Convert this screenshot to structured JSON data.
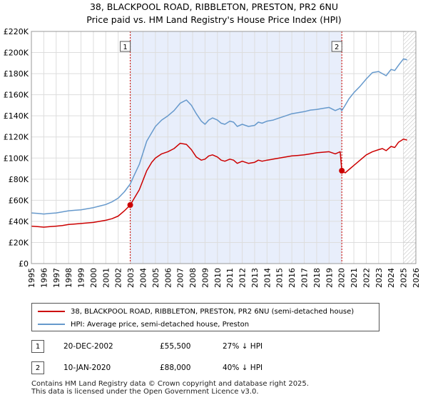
{
  "title_line1": "38, BLACKPOOL ROAD, RIBBLETON, PRESTON, PR2 6NU",
  "title_line2": "Price paid vs. HM Land Registry's House Price Index (HPI)",
  "chart_data": {
    "type": "line",
    "title": "38, BLACKPOOL ROAD, RIBBLETON, PRESTON, PR2 6NU — Price paid vs. HM Land Registry's House Price Index (HPI)",
    "xlim": [
      1995,
      2026
    ],
    "ylim": [
      0,
      220000
    ],
    "y_ticks": [
      {
        "value": 0,
        "label": "£0"
      },
      {
        "value": 20000,
        "label": "£20K"
      },
      {
        "value": 40000,
        "label": "£40K"
      },
      {
        "value": 60000,
        "label": "£60K"
      },
      {
        "value": 80000,
        "label": "£80K"
      },
      {
        "value": 100000,
        "label": "£100K"
      },
      {
        "value": 120000,
        "label": "£120K"
      },
      {
        "value": 140000,
        "label": "£140K"
      },
      {
        "value": 160000,
        "label": "£160K"
      },
      {
        "value": 180000,
        "label": "£180K"
      },
      {
        "value": 200000,
        "label": "£200K"
      },
      {
        "value": 220000,
        "label": "£220K"
      }
    ],
    "x_ticks": [
      "1995",
      "1996",
      "1997",
      "1998",
      "1999",
      "2000",
      "2001",
      "2002",
      "2003",
      "2004",
      "2005",
      "2006",
      "2007",
      "2008",
      "2009",
      "2010",
      "2011",
      "2012",
      "2013",
      "2014",
      "2015",
      "2016",
      "2017",
      "2018",
      "2019",
      "2020",
      "2021",
      "2022",
      "2023",
      "2024",
      "2025",
      "2026"
    ],
    "shaded_span": [
      2002.97,
      2020.03
    ],
    "hatched_from": 2025.0,
    "colors": {
      "property": "#cc0000",
      "hpi": "#6699cc",
      "shade": "#e8eefb",
      "grid": "#dddddd"
    },
    "series": [
      {
        "name": "38, BLACKPOOL ROAD, RIBBLETON, PRESTON, PR2 6NU (semi-detached house)",
        "color": "#cc0000",
        "x": [
          1995,
          1995.5,
          1996,
          1996.5,
          1997,
          1997.5,
          1998,
          1998.5,
          1999,
          1999.5,
          2000,
          2000.5,
          2001,
          2001.5,
          2002,
          2002.5,
          2002.97,
          2003.3,
          2003.7,
          2004,
          2004.3,
          2004.7,
          2005,
          2005.5,
          2006,
          2006.5,
          2007,
          2007.5,
          2007.9,
          2008.3,
          2008.7,
          2009,
          2009.3,
          2009.6,
          2010,
          2010.3,
          2010.6,
          2011,
          2011.3,
          2011.6,
          2012,
          2012.5,
          2013,
          2013.3,
          2013.6,
          2014,
          2014.5,
          2015,
          2015.5,
          2016,
          2016.5,
          2017,
          2017.5,
          2018,
          2018.5,
          2019,
          2019.5,
          2019.9,
          2020.03,
          2020.3,
          2020.6,
          2021,
          2021.5,
          2022,
          2022.5,
          2023,
          2023.3,
          2023.6,
          2024,
          2024.3,
          2024.6,
          2025,
          2025.3
        ],
        "y": [
          35500,
          35000,
          34500,
          35000,
          35500,
          36000,
          37000,
          37500,
          38000,
          38500,
          39000,
          40000,
          41000,
          42500,
          45000,
          50000,
          55500,
          62000,
          70000,
          79000,
          88000,
          96000,
          100000,
          104000,
          106000,
          109000,
          114000,
          113000,
          108000,
          101000,
          98000,
          99000,
          102000,
          103000,
          101000,
          98000,
          97000,
          99000,
          98000,
          95000,
          97000,
          95000,
          96000,
          98000,
          97000,
          98000,
          99000,
          100000,
          101000,
          102000,
          102500,
          103000,
          104000,
          105000,
          105500,
          106000,
          104000,
          106000,
          88000,
          86000,
          89000,
          93000,
          98000,
          103000,
          106000,
          108000,
          109000,
          107000,
          111000,
          110000,
          115000,
          118000,
          117000
        ]
      },
      {
        "name": "HPI: Average price, semi-detached house, Preston",
        "color": "#6699cc",
        "x": [
          1995,
          1995.5,
          1996,
          1996.5,
          1997,
          1997.5,
          1998,
          1998.5,
          1999,
          1999.5,
          2000,
          2000.5,
          2001,
          2001.5,
          2002,
          2002.5,
          2002.97,
          2003.3,
          2003.7,
          2004,
          2004.3,
          2004.7,
          2005,
          2005.5,
          2006,
          2006.5,
          2007,
          2007.5,
          2007.9,
          2008.3,
          2008.7,
          2009,
          2009.3,
          2009.6,
          2010,
          2010.3,
          2010.6,
          2011,
          2011.3,
          2011.6,
          2012,
          2012.5,
          2013,
          2013.3,
          2013.6,
          2014,
          2014.5,
          2015,
          2015.5,
          2016,
          2016.5,
          2017,
          2017.5,
          2018,
          2018.5,
          2019,
          2019.5,
          2019.9,
          2020.03,
          2020.3,
          2020.6,
          2021,
          2021.5,
          2022,
          2022.5,
          2023,
          2023.3,
          2023.6,
          2024,
          2024.3,
          2024.6,
          2025,
          2025.3
        ],
        "y": [
          48000,
          47500,
          47000,
          47500,
          48000,
          49000,
          50000,
          50500,
          51000,
          52000,
          53000,
          54500,
          56000,
          58500,
          62000,
          68000,
          75500,
          84000,
          94000,
          105000,
          116000,
          124000,
          130000,
          136000,
          140000,
          145000,
          152000,
          155000,
          150000,
          142000,
          135000,
          132000,
          136000,
          138000,
          136000,
          133000,
          132000,
          135000,
          134000,
          130000,
          132000,
          130000,
          131000,
          134000,
          133000,
          135000,
          136000,
          138000,
          140000,
          142000,
          143000,
          144000,
          145500,
          146000,
          147000,
          148000,
          145000,
          147000,
          145000,
          150000,
          156000,
          162000,
          168000,
          175000,
          181000,
          182000,
          180000,
          178000,
          184000,
          183000,
          188000,
          194000,
          193000
        ]
      }
    ],
    "annotations": [
      {
        "label": "1",
        "x": 2002.97,
        "y": 55500
      },
      {
        "label": "2",
        "x": 2020.03,
        "y": 88000
      }
    ]
  },
  "legend": {
    "property": "38, BLACKPOOL ROAD, RIBBLETON, PRESTON, PR2 6NU (semi-detached house)",
    "hpi": "HPI: Average price, semi-detached house, Preston"
  },
  "sales": [
    {
      "num": "1",
      "date": "20-DEC-2002",
      "price": "£55,500",
      "pct": "27% ↓ HPI"
    },
    {
      "num": "2",
      "date": "10-JAN-2020",
      "price": "£88,000",
      "pct": "40% ↓ HPI"
    }
  ],
  "footer_line1": "Contains HM Land Registry data © Crown copyright and database right 2025.",
  "footer_line2": "This data is licensed under the Open Government Licence v3.0."
}
